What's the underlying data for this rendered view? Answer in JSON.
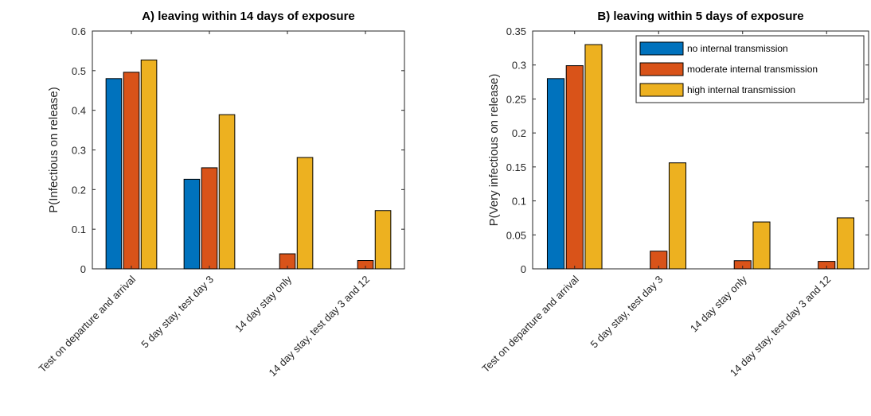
{
  "chart_data": [
    {
      "type": "bar",
      "title": "A) leaving within 14 days of exposure",
      "xlabel": "",
      "ylabel": "P(Infectious on release)",
      "ylim": [
        0,
        0.6
      ],
      "yticks": [
        "0",
        "0.1",
        "0.2",
        "0.3",
        "0.4",
        "0.5",
        "0.6"
      ],
      "categories": [
        "Test on departure and arrival",
        "5 day stay, test day 3",
        "14 day stay only",
        "14 day stay, test day 3 and 12"
      ],
      "series": [
        {
          "name": "no internal transmission",
          "color": "#0072BD",
          "values": [
            0.48,
            0.226,
            0,
            0
          ]
        },
        {
          "name": "moderate internal transmission",
          "color": "#D95319",
          "values": [
            0.496,
            0.255,
            0.038,
            0.021
          ]
        },
        {
          "name": "high internal transmission",
          "color": "#EDB120",
          "values": [
            0.527,
            0.389,
            0.281,
            0.147
          ]
        }
      ],
      "legend": "none"
    },
    {
      "type": "bar",
      "title": "B) leaving within 5 days of exposure",
      "xlabel": "",
      "ylabel": "P(Very infectious on release)",
      "ylim": [
        0,
        0.35
      ],
      "yticks": [
        "0",
        "0.05",
        "0.1",
        "0.15",
        "0.2",
        "0.25",
        "0.3",
        "0.35"
      ],
      "categories": [
        "Test on departure and arrival",
        "5 day stay, test day 3",
        "14 day stay only",
        "14 day stay, test day 3 and 12"
      ],
      "series": [
        {
          "name": "no internal transmission",
          "color": "#0072BD",
          "values": [
            0.28,
            0,
            0,
            0
          ]
        },
        {
          "name": "moderate internal transmission",
          "color": "#D95319",
          "values": [
            0.299,
            0.026,
            0.012,
            0.011
          ]
        },
        {
          "name": "high internal transmission",
          "color": "#EDB120",
          "values": [
            0.33,
            0.156,
            0.069,
            0.075
          ]
        }
      ],
      "legend": "top-right"
    }
  ]
}
